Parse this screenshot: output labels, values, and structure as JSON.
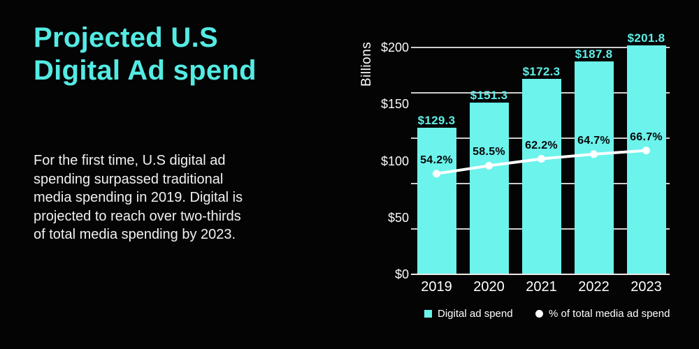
{
  "left_panel": {
    "title": "Projected U.S\nDigital Ad spend",
    "description": "For the first time, U.S digital ad\nspending surpassed traditional\nmedia spending in 2019. Digital is\nprojected to reach over two-thirds\nof total media spending by 2023."
  },
  "chart_data": {
    "type": "bar",
    "subtype": "bar-with-line-overlay",
    "ylabel": "Billions",
    "categories": [
      "2019",
      "2020",
      "2021",
      "2022",
      "2023"
    ],
    "series": [
      {
        "name": "Digital ad spend",
        "kind": "bar",
        "unit": "$ billions",
        "values": [
          129.3,
          151.3,
          172.3,
          187.8,
          201.8
        ],
        "labels": [
          "$129.3",
          "$151.3",
          "$172.3",
          "$187.8",
          "$201.8"
        ],
        "color": "#6bf3ec"
      },
      {
        "name": "% of total media ad spend",
        "kind": "line",
        "unit": "%",
        "values": [
          54.2,
          58.5,
          62.2,
          64.7,
          66.7
        ],
        "labels": [
          "54.2%",
          "58.5%",
          "62.2%",
          "64.7%",
          "66.7%"
        ],
        "color": "#ffffff"
      }
    ],
    "y_ticks": [
      {
        "label": "$0",
        "value": 0
      },
      {
        "label": "$50",
        "value": 50
      },
      {
        "label": "$100",
        "value": 100
      },
      {
        "label": "$150",
        "value": 150
      },
      {
        "label": "$200",
        "value": 200
      }
    ],
    "gridline_values": [
      0,
      40,
      80,
      120,
      160,
      200
    ],
    "ylim": [
      0,
      200
    ],
    "grid": true,
    "legend_position": "bottom",
    "legend": [
      {
        "label": "Digital ad spend",
        "marker": "square",
        "color": "#6bf3ec"
      },
      {
        "label": "% of total media ad spend",
        "marker": "circle",
        "color": "#ffffff"
      }
    ]
  },
  "colors": {
    "background": "#040404",
    "accent_title": "#54ebe3",
    "bar": "#6bf3ec",
    "bar_value_label": "#5eefe8",
    "pct_label": "#070707",
    "grid": "#cfcccc",
    "axis": "#efeaea",
    "text": "#f1f1f1",
    "line": "#ffffff"
  }
}
